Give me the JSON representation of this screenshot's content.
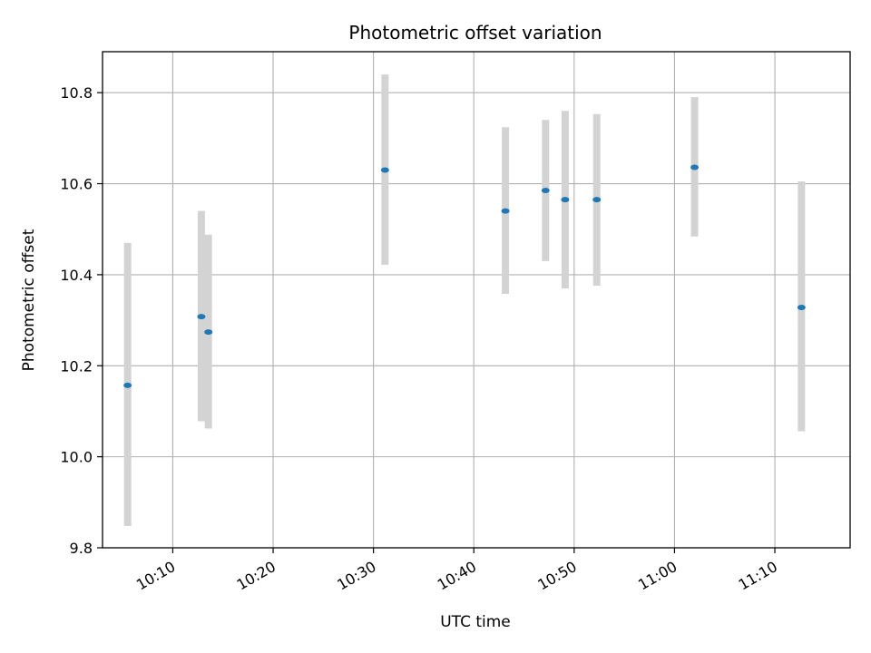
{
  "chart_data": {
    "type": "scatter",
    "title": "Photometric offset variation",
    "xlabel": "UTC time",
    "ylabel": "Photometric offset",
    "grid": true,
    "xlim_minutes": [
      603.0,
      677.5
    ],
    "ylim": [
      9.8,
      10.89
    ],
    "x_ticks": [
      {
        "minutes": 610,
        "label": "10:10"
      },
      {
        "minutes": 620,
        "label": "10:20"
      },
      {
        "minutes": 630,
        "label": "10:30"
      },
      {
        "minutes": 640,
        "label": "10:40"
      },
      {
        "minutes": 650,
        "label": "10:50"
      },
      {
        "minutes": 660,
        "label": "11:00"
      },
      {
        "minutes": 670,
        "label": "11:10"
      }
    ],
    "y_ticks": [
      {
        "value": 9.8,
        "label": "9.8"
      },
      {
        "value": 10.0,
        "label": "10.0"
      },
      {
        "value": 10.2,
        "label": "10.2"
      },
      {
        "value": 10.4,
        "label": "10.4"
      },
      {
        "value": 10.6,
        "label": "10.6"
      },
      {
        "value": 10.8,
        "label": "10.8"
      }
    ],
    "series": [
      {
        "name": "offset",
        "color": "#1f77b4",
        "errorbar_color": "#d3d3d3",
        "points": [
          {
            "time": "10:05:30",
            "minutes": 605.5,
            "y": 10.157,
            "y_low": 9.848,
            "y_high": 10.47
          },
          {
            "time": "10:12:50",
            "minutes": 612.85,
            "y": 10.308,
            "y_low": 10.078,
            "y_high": 10.54
          },
          {
            "time": "10:13:35",
            "minutes": 613.55,
            "y": 10.274,
            "y_low": 10.062,
            "y_high": 10.488
          },
          {
            "time": "10:31:10",
            "minutes": 631.15,
            "y": 10.63,
            "y_low": 10.422,
            "y_high": 10.84
          },
          {
            "time": "10:43:10",
            "minutes": 643.15,
            "y": 10.54,
            "y_low": 10.358,
            "y_high": 10.724
          },
          {
            "time": "10:47:10",
            "minutes": 647.15,
            "y": 10.585,
            "y_low": 10.43,
            "y_high": 10.74
          },
          {
            "time": "10:49:05",
            "minutes": 649.1,
            "y": 10.565,
            "y_low": 10.37,
            "y_high": 10.76
          },
          {
            "time": "10:52:15",
            "minutes": 652.25,
            "y": 10.565,
            "y_low": 10.376,
            "y_high": 10.753
          },
          {
            "time": "11:02:00",
            "minutes": 662.0,
            "y": 10.636,
            "y_low": 10.484,
            "y_high": 10.79
          },
          {
            "time": "11:12:40",
            "minutes": 672.65,
            "y": 10.328,
            "y_low": 10.056,
            "y_high": 10.605
          }
        ]
      }
    ]
  }
}
